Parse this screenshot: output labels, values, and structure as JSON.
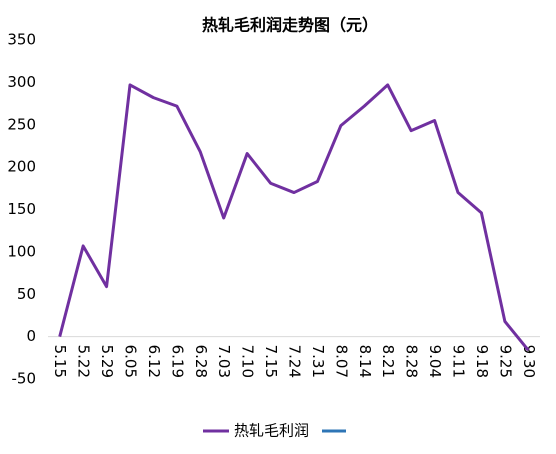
{
  "chart_data": {
    "type": "line",
    "title": "热轧毛利润走势图（元）",
    "categories": [
      "5.15",
      "5.22",
      "5.29",
      "6.05",
      "6.12",
      "6.19",
      "6.28",
      "7.03",
      "7.10",
      "7.15",
      "7.24",
      "7.31",
      "8.07",
      "8.14",
      "8.21",
      "8.28",
      "9.04",
      "9.11",
      "9.18",
      "9.25",
      "9.30"
    ],
    "series": [
      {
        "name": "热轧毛利润",
        "color": "#7030a0",
        "values": [
          0,
          107,
          59,
          297,
          282,
          272,
          218,
          140,
          216,
          181,
          170,
          183,
          249,
          272,
          297,
          243,
          255,
          170,
          146,
          18,
          -16
        ]
      }
    ],
    "ylim": [
      -50,
      350
    ],
    "yticks": [
      -50,
      0,
      50,
      100,
      150,
      200,
      250,
      300,
      350
    ],
    "grid": false,
    "legend": "bottom"
  }
}
